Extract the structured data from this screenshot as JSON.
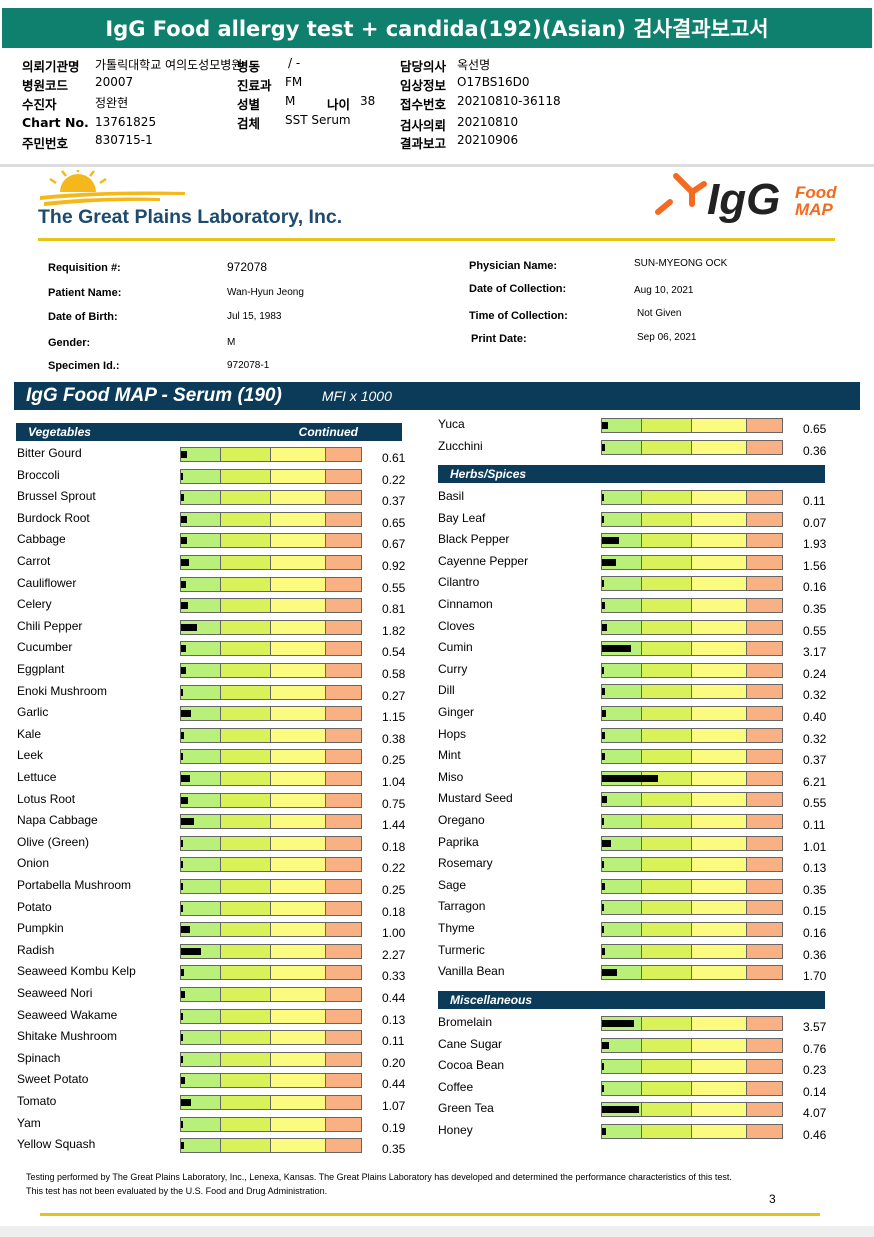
{
  "report_title": "IgG Food allergy test + candida(192)(Asian) 검사결과보고서",
  "header": {
    "col1": [
      {
        "k": "의뢰기관명",
        "v": "가톨릭대학교 여의도성모병원"
      },
      {
        "k": "병원코드",
        "v": "20007"
      },
      {
        "k": "수진자",
        "v": "정완현"
      },
      {
        "k": "Chart No.",
        "v": "13761825"
      },
      {
        "k": "주민번호",
        "v": "830715-1"
      }
    ],
    "col2": [
      {
        "k": "병동",
        "v": "/ -"
      },
      {
        "k": "진료과",
        "v": "FM"
      },
      {
        "k": "성별",
        "v": "M"
      },
      {
        "k": "검체",
        "v": "SST Serum"
      }
    ],
    "age": {
      "k": "나이",
      "v": "38"
    },
    "col3": [
      {
        "k": "담당의사",
        "v": "옥선명"
      },
      {
        "k": "임상정보",
        "v": "O17BS16D0"
      },
      {
        "k": "접수번호",
        "v": "20210810-36118"
      },
      {
        "k": "검사의뢰",
        "v": "20210810"
      },
      {
        "k": "결과보고",
        "v": "20210906"
      }
    ]
  },
  "lab_name": "The Great Plains Laboratory, Inc.",
  "igg_logo": {
    "big": "IgG",
    "small1": "Food",
    "small2": "MAP"
  },
  "patient": {
    "left": [
      {
        "k": "Requisition #:",
        "v": "972078"
      },
      {
        "k": "Patient Name:",
        "v": "Wan-Hyun Jeong"
      },
      {
        "k": "Date of Birth:",
        "v": "Jul 15, 1983"
      },
      {
        "k": "Gender:",
        "v": "M"
      },
      {
        "k": "Specimen Id.:",
        "v": "972078-1"
      }
    ],
    "right": [
      {
        "k": "Physician Name:",
        "v": "SUN-MYEONG OCK"
      },
      {
        "k": "Date of Collection:",
        "v": "Aug 10, 2021"
      },
      {
        "k": "Time of Collection:",
        "v": "Not Given"
      },
      {
        "k": "Print Date:",
        "v": "Sep 06, 2021"
      }
    ]
  },
  "serum_title": "IgG Food MAP - Serum (190)",
  "mfi": "MFI x 1000",
  "vegetables": {
    "title": "Vegetables",
    "continued": "Continued",
    "items": [
      [
        "Bitter Gourd",
        0.61
      ],
      [
        "Broccoli",
        0.22
      ],
      [
        "Brussel Sprout",
        0.37
      ],
      [
        "Burdock Root",
        0.65
      ],
      [
        "Cabbage",
        0.67
      ],
      [
        "Carrot",
        0.92
      ],
      [
        "Cauliflower",
        0.55
      ],
      [
        "Celery",
        0.81
      ],
      [
        "Chili Pepper",
        1.82
      ],
      [
        "Cucumber",
        0.54
      ],
      [
        "Eggplant",
        0.58
      ],
      [
        "Enoki Mushroom",
        0.27
      ],
      [
        "Garlic",
        1.15
      ],
      [
        "Kale",
        0.38
      ],
      [
        "Leek",
        0.25
      ],
      [
        "Lettuce",
        1.04
      ],
      [
        "Lotus Root",
        0.75
      ],
      [
        "Napa Cabbage",
        1.44
      ],
      [
        "Olive (Green)",
        0.18
      ],
      [
        "Onion",
        0.22
      ],
      [
        "Portabella Mushroom",
        0.25
      ],
      [
        "Potato",
        0.18
      ],
      [
        "Pumpkin",
        1.0
      ],
      [
        "Radish",
        2.27
      ],
      [
        "Seaweed Kombu Kelp",
        0.33
      ],
      [
        "Seaweed Nori",
        0.44
      ],
      [
        "Seaweed Wakame",
        0.13
      ],
      [
        "Shitake Mushroom",
        0.11
      ],
      [
        "Spinach",
        0.2
      ],
      [
        "Sweet Potato",
        0.44
      ],
      [
        "Tomato",
        1.07
      ],
      [
        "Yam",
        0.19
      ],
      [
        "Yellow Squash",
        0.35
      ]
    ]
  },
  "vegetables_cont": [
    [
      "Yuca",
      0.65
    ],
    [
      "Zucchini",
      0.36
    ]
  ],
  "herbs": {
    "title": "Herbs/Spices",
    "items": [
      [
        "Basil",
        0.11
      ],
      [
        "Bay Leaf",
        0.07
      ],
      [
        "Black Pepper",
        1.93
      ],
      [
        "Cayenne Pepper",
        1.56
      ],
      [
        "Cilantro",
        0.16
      ],
      [
        "Cinnamon",
        0.35
      ],
      [
        "Cloves",
        0.55
      ],
      [
        "Cumin",
        3.17
      ],
      [
        "Curry",
        0.24
      ],
      [
        "Dill",
        0.32
      ],
      [
        "Ginger",
        0.4
      ],
      [
        "Hops",
        0.32
      ],
      [
        "Mint",
        0.37
      ],
      [
        "Miso",
        6.21
      ],
      [
        "Mustard Seed",
        0.55
      ],
      [
        "Oregano",
        0.11
      ],
      [
        "Paprika",
        1.01
      ],
      [
        "Rosemary",
        0.13
      ],
      [
        "Sage",
        0.35
      ],
      [
        "Tarragon",
        0.15
      ],
      [
        "Thyme",
        0.16
      ],
      [
        "Turmeric",
        0.36
      ],
      [
        "Vanilla Bean",
        1.7
      ]
    ]
  },
  "misc": {
    "title": "Miscellaneous",
    "items": [
      [
        "Bromelain",
        3.57
      ],
      [
        "Cane Sugar",
        0.76
      ],
      [
        "Cocoa Bean",
        0.23
      ],
      [
        "Coffee",
        0.14
      ],
      [
        "Green Tea",
        4.07
      ],
      [
        "Honey",
        0.46
      ]
    ]
  },
  "footer_text": "Testing performed by The Great Plains Laboratory, Inc., Lenexa, Kansas.  The Great Plains Laboratory has developed and determined the performance characteristics of this test.  This test has not been evaluated by the U.S.  Food and Drug Administration.",
  "page_number": "3",
  "colors": {
    "teal": "#0f7f6e",
    "navy": "#0c3b5a",
    "gold": "#e8c21c",
    "green": "#b8f079",
    "yellow": "#fbfb80",
    "orange": "#f9b083"
  }
}
